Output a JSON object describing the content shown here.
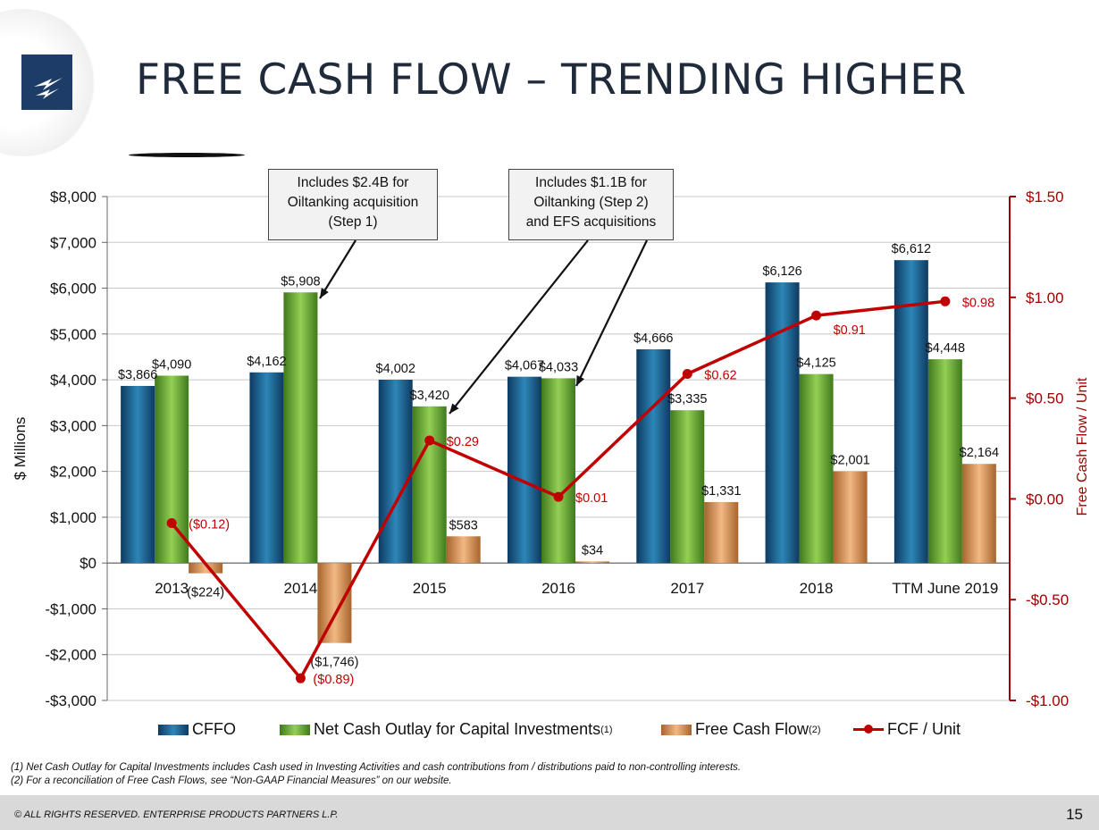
{
  "title": "FREE CASH FLOW – TRENDING HIGHER",
  "logo_icon": "lightning-bolt-icon",
  "callouts": [
    {
      "text": "Includes $2.4B for\nOiltanking acquisition\n(Step 1)"
    },
    {
      "text": "Includes $1.1B for\nOiltanking (Step 2)\nand EFS acquisitions"
    }
  ],
  "legend": {
    "cffo": "CFFO",
    "capex": "Net Cash Outlay for Capital Investments",
    "capex_note": "(1)",
    "fcf": "Free Cash Flow",
    "fcf_note": "(2)",
    "fcf_unit": "FCF / Unit"
  },
  "footnotes": [
    "(1)  Net Cash Outlay for Capital Investments includes Cash used in Investing Activities and cash contributions from / distributions paid to non-controlling interests.",
    "(2)  For a reconciliation of Free Cash Flows, see “Non-GAAP Financial Measures” on our website."
  ],
  "footer": {
    "copyright": "© ALL RIGHTS RESERVED. ENTERPRISE PRODUCTS PARTNERS L.P.",
    "page": "15"
  },
  "colors": {
    "cffo": "#1f5f8b",
    "capex": "#6aa535",
    "fcf": "#d9945a",
    "fcf_unit": "#c00000",
    "right_axis": "#a00000"
  },
  "chart_data": {
    "type": "bar",
    "categories": [
      "2013",
      "2014",
      "2015",
      "2016",
      "2017",
      "2018",
      "TTM June 2019"
    ],
    "series": [
      {
        "name": "CFFO",
        "values": [
          3866,
          4162,
          4002,
          4067,
          4666,
          6126,
          6612
        ],
        "labels": [
          "$3,866",
          "$4,162",
          "$4,002",
          "$4,067",
          "$4,666",
          "$6,126",
          "$6,612"
        ]
      },
      {
        "name": "Net Cash Outlay for Capital Investments",
        "values": [
          4090,
          5908,
          3420,
          4033,
          3335,
          4125,
          4448
        ],
        "labels": [
          "$4,090",
          "$5,908",
          "$3,420",
          "$4,033",
          "$3,335",
          "$4,125",
          "$4,448"
        ]
      },
      {
        "name": "Free Cash Flow",
        "values": [
          -224,
          -1746,
          583,
          34,
          1331,
          2001,
          2164
        ],
        "labels": [
          "($224)",
          "($1,746)",
          "$583",
          "$34",
          "$1,331",
          "$2,001",
          "$2,164"
        ]
      }
    ],
    "line_series": {
      "name": "FCF / Unit",
      "type": "line",
      "axis": "right",
      "values": [
        -0.12,
        -0.89,
        0.29,
        0.01,
        0.62,
        0.91,
        0.98
      ],
      "labels": [
        "($0.12)",
        "($0.89)",
        "$0.29",
        "$0.01",
        "$0.62",
        "$0.91",
        "$0.98"
      ]
    },
    "ylabel": "$ Millions",
    "ylim": [
      -3000,
      8000
    ],
    "yticks": [
      8000,
      7000,
      6000,
      5000,
      4000,
      3000,
      2000,
      1000,
      0,
      -1000,
      -2000,
      -3000
    ],
    "ytick_labels": [
      "$8,000",
      "$7,000",
      "$6,000",
      "$5,000",
      "$4,000",
      "$3,000",
      "$2,000",
      "$1,000",
      "$0",
      "-$1,000",
      "-$2,000",
      "-$3,000"
    ],
    "y2label": "Free Cash Flow / Unit",
    "y2lim": [
      -1.0,
      1.5
    ],
    "y2ticks": [
      1.5,
      1.0,
      0.5,
      0.0,
      -0.5,
      -1.0
    ],
    "y2tick_labels": [
      "$1.50",
      "$1.00",
      "$0.50",
      "$0.00",
      "-$0.50",
      "-$1.00"
    ],
    "grid": true,
    "legend_position": "bottom"
  }
}
